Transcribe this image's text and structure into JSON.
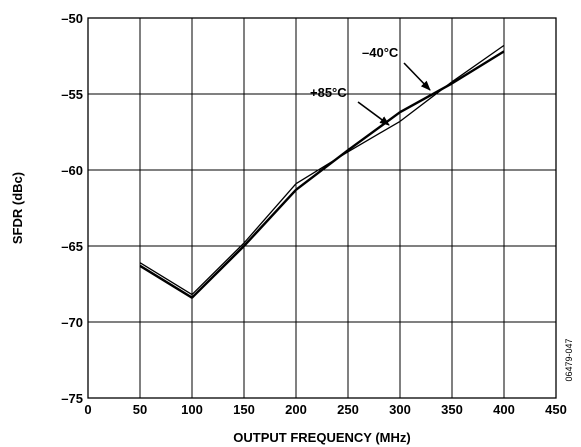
{
  "chart_data": {
    "type": "line",
    "title": "",
    "xlabel": "OUTPUT FREQUENCY (MHz)",
    "ylabel": "SFDR (dBc)",
    "xlim": [
      0,
      450
    ],
    "ylim": [
      -75,
      -50
    ],
    "xticks": [
      0,
      50,
      100,
      150,
      200,
      250,
      300,
      350,
      400,
      450
    ],
    "yticks": [
      -50,
      -55,
      -60,
      -65,
      -70,
      -75
    ],
    "xtick_labels": [
      "0",
      "50",
      "100",
      "150",
      "200",
      "250",
      "300",
      "350",
      "400",
      "450"
    ],
    "ytick_labels": [
      "–50",
      "–55",
      "–60",
      "–65",
      "–70",
      "–75"
    ],
    "grid": true,
    "series": [
      {
        "name": "+85°C",
        "x": [
          50,
          100,
          150,
          200,
          250,
          300,
          350,
          400
        ],
        "y": [
          -66.3,
          -68.4,
          -65.0,
          -61.3,
          -58.7,
          -56.2,
          -54.3,
          -52.2
        ]
      },
      {
        "name": "–40°C",
        "x": [
          50,
          100,
          150,
          200,
          250,
          300,
          350,
          400
        ],
        "y": [
          -66.1,
          -68.2,
          -64.8,
          -60.9,
          -58.8,
          -56.8,
          -54.2,
          -51.8
        ]
      }
    ],
    "annotations": [
      {
        "text": "–40°C",
        "series": 1
      },
      {
        "text": "+85°C",
        "series": 0
      }
    ],
    "figure_code": "06479-047"
  }
}
